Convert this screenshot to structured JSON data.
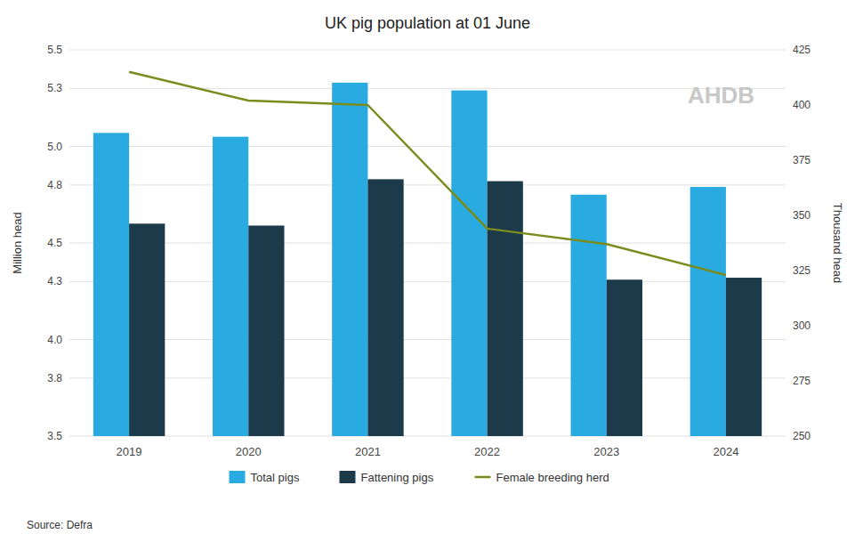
{
  "chart_data": {
    "type": "bar",
    "title": "UK pig population at 01 June",
    "categories": [
      "2019",
      "2020",
      "2021",
      "2022",
      "2023",
      "2024"
    ],
    "series": [
      {
        "name": "Total pigs",
        "color": "#29ABE2",
        "values": [
          5.07,
          5.05,
          5.33,
          5.29,
          4.75,
          4.79
        ]
      },
      {
        "name": "Fattening pigs",
        "color": "#1C3A4A",
        "values": [
          4.6,
          4.59,
          4.83,
          4.82,
          4.31,
          4.32
        ]
      },
      {
        "name": "Female breeding herd",
        "type": "line",
        "axis": "y2",
        "color": "#7A8C1E",
        "values": [
          415,
          402,
          400,
          344,
          337,
          323
        ]
      }
    ],
    "ylabel": "Million head",
    "y2label": "Thousand head",
    "ylim": [
      3.5,
      5.5
    ],
    "yticks": [
      3.5,
      3.8,
      {
        "value": 4,
        "label": "4.0"
      },
      4.3,
      4.5,
      4.8,
      {
        "value": 5,
        "label": "5.0"
      },
      5.3,
      5.5
    ],
    "y2lim": [
      250,
      425
    ],
    "y2ticks": [
      250,
      275,
      300,
      325,
      350,
      375,
      400,
      425
    ],
    "grid": true,
    "legend": "bottom",
    "annotations": [
      "AHDB"
    ],
    "source": "Source: Defra"
  }
}
